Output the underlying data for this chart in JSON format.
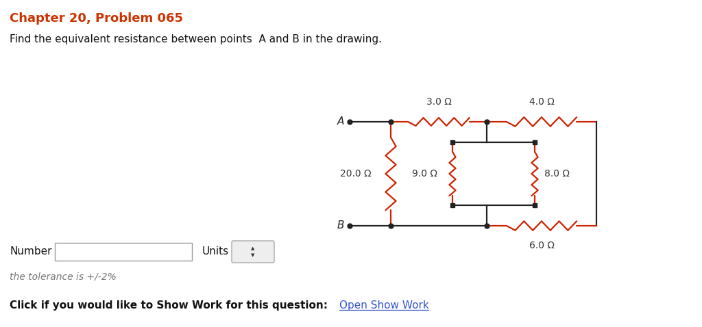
{
  "title": "Chapter 20, Problem 065",
  "title_color": "#cc3300",
  "subtitle": "Find the equivalent resistance between points Â A and B in the drawing.",
  "background_color": "#ffffff",
  "circuit_color": "#222222",
  "resistor_color": "#cc2200",
  "text_color": "#333333",
  "resistors": {
    "R_top_left": "3.0 Ω",
    "R_top_right": "4.0 Ω",
    "R_left": "20.0 Ω",
    "R_middle": "9.0 Ω",
    "R_right": "8.0 Ω",
    "R_bottom": "6.0 Ω"
  },
  "bottom_text": "the tolerance is +/-2%",
  "link_text": "Open Show Work",
  "click_text": "Click if you would like to Show Work for this question:",
  "number_label": "Number",
  "units_label": "Units"
}
